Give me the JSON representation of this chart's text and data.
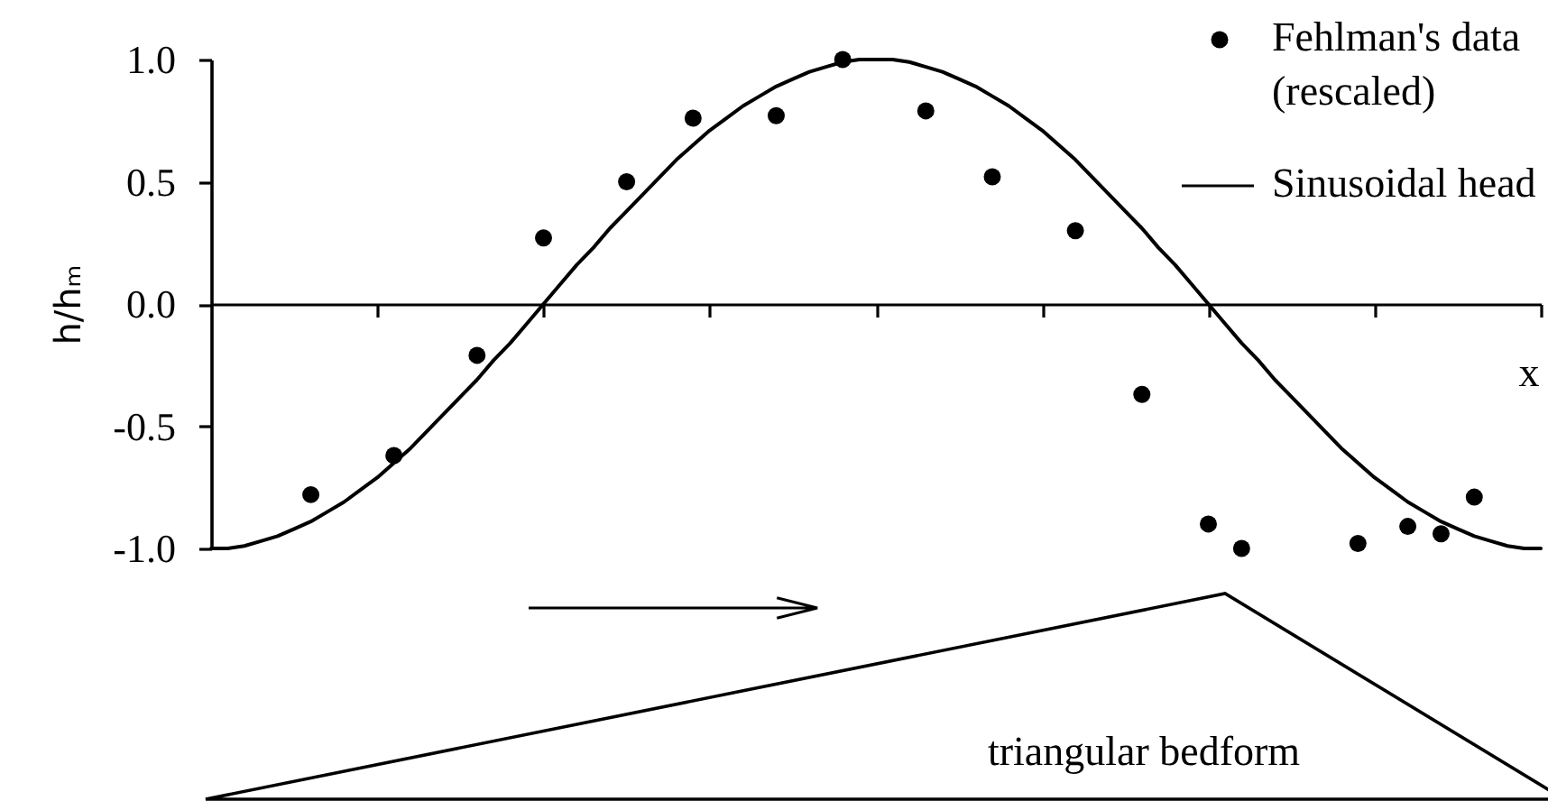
{
  "chart_data": {
    "type": "scatter",
    "xlabel": "x",
    "ylabel": "h/hₘ",
    "annotations": [
      "triangular bedform"
    ],
    "categories": [
      null,
      null,
      null,
      null,
      null,
      null,
      null,
      null,
      null,
      null,
      null,
      null,
      null,
      null,
      null,
      null,
      null,
      null,
      null,
      null,
      null,
      null,
      null,
      null,
      null,
      null,
      null,
      null,
      null,
      null,
      null,
      null,
      null,
      null,
      null,
      null,
      null,
      null,
      null,
      null,
      null,
      null,
      null,
      null,
      null,
      null,
      null,
      null,
      null,
      null,
      null,
      null,
      null,
      null,
      null,
      null,
      null,
      null,
      null,
      null,
      null,
      null,
      null,
      null,
      null,
      null,
      null,
      null,
      null,
      null,
      null,
      null,
      null,
      null,
      null,
      null,
      null,
      null,
      null,
      null,
      null
    ],
    "ylim": [
      -1,
      1
    ],
    "yticks": [
      {
        "value": -1,
        "label": "-1.0"
      },
      {
        "value": -0.5,
        "label": "-0.5"
      },
      {
        "value": 0,
        "label": "0.0"
      },
      {
        "value": 0.5,
        "label": "0.5"
      },
      {
        "value": 1,
        "label": "1.0"
      }
    ],
    "tick_labels": "y",
    "legend": "top right",
    "series": [
      {
        "name": "Fehlman's data (rescaled)",
        "marker": "circle",
        "color": "#000000",
        "values": [
          null,
          null,
          null,
          null,
          null,
          null,
          -0.78,
          null,
          null,
          null,
          null,
          -0.62,
          null,
          null,
          null,
          null,
          -0.21,
          null,
          null,
          null,
          0.27,
          null,
          null,
          null,
          null,
          0.5,
          null,
          null,
          null,
          0.76,
          null,
          null,
          null,
          null,
          0.77,
          null,
          null,
          null,
          1.0,
          null,
          null,
          null,
          null,
          0.79,
          null,
          null,
          null,
          0.52,
          null,
          null,
          null,
          null,
          0.3,
          null,
          null,
          null,
          -0.37,
          null,
          null,
          null,
          -0.9,
          null,
          -1.0,
          null,
          null,
          null,
          null,
          null,
          null,
          -0.98,
          null,
          null,
          -0.91,
          null,
          -0.94,
          null,
          -0.79,
          null,
          null,
          null,
          null
        ]
      },
      {
        "name": "Sinusoidal head",
        "type": "line",
        "line_style": "solid",
        "color": "#000000",
        "values": [
          -1.0,
          -1.0,
          -0.99,
          -0.97,
          -0.95,
          -0.92,
          -0.89,
          -0.85,
          -0.81,
          -0.76,
          -0.71,
          -0.65,
          -0.59,
          -0.52,
          -0.45,
          -0.38,
          -0.31,
          -0.23,
          -0.16,
          -0.08,
          0.0,
          0.08,
          0.16,
          0.23,
          0.31,
          0.38,
          0.45,
          0.52,
          0.59,
          0.65,
          0.71,
          0.76,
          0.81,
          0.85,
          0.89,
          0.92,
          0.95,
          0.97,
          0.99,
          1.0,
          1.0,
          1.0,
          0.99,
          0.97,
          0.95,
          0.92,
          0.89,
          0.85,
          0.81,
          0.76,
          0.71,
          0.65,
          0.59,
          0.52,
          0.45,
          0.38,
          0.31,
          0.23,
          0.16,
          0.08,
          0.0,
          -0.08,
          -0.16,
          -0.23,
          -0.31,
          -0.38,
          -0.45,
          -0.52,
          -0.59,
          -0.65,
          -0.71,
          -0.76,
          -0.81,
          -0.85,
          -0.89,
          -0.92,
          -0.95,
          -0.97,
          -0.99,
          -1.0,
          -1.0
        ]
      }
    ]
  }
}
